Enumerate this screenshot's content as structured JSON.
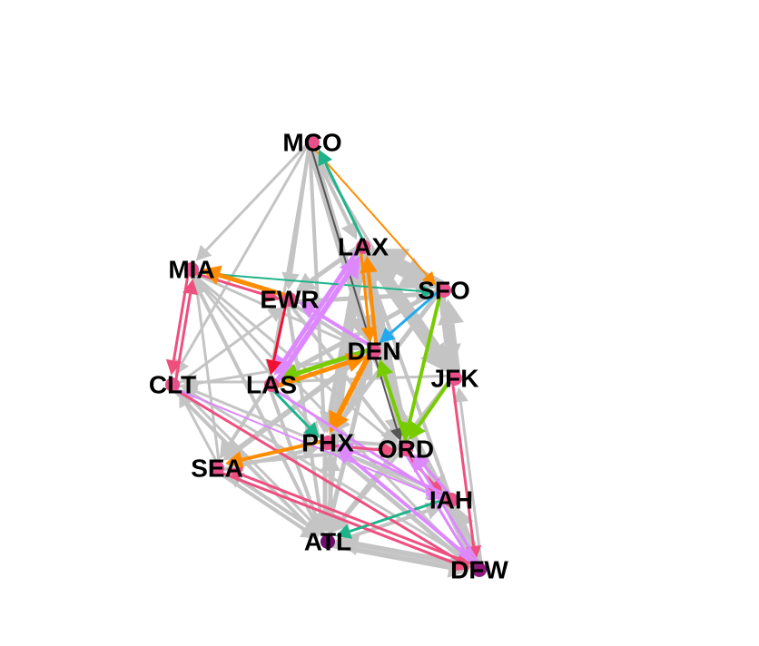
{
  "nodes": [
    {
      "id": "MCO",
      "color": "#e8508a"
    },
    {
      "id": "LAX",
      "color": "#e8508a"
    },
    {
      "id": "MIA",
      "color": "#e8508a"
    },
    {
      "id": "EWR",
      "color": "#e8508a"
    },
    {
      "id": "SFO",
      "color": "#e8508a"
    },
    {
      "id": "DEN",
      "color": "#e8508a"
    },
    {
      "id": "JFK",
      "color": "#e8508a"
    },
    {
      "id": "CLT",
      "color": "#e8508a"
    },
    {
      "id": "LAS",
      "color": "#e8508a"
    },
    {
      "id": "PHX",
      "color": "#e8508a"
    },
    {
      "id": "ORD",
      "color": "#e8508a"
    },
    {
      "id": "SEA",
      "color": "#e8508a"
    },
    {
      "id": "IAH",
      "color": "#e8508a"
    },
    {
      "id": "ATL",
      "color": "#6b0f6b"
    },
    {
      "id": "DFW",
      "color": "#8b1a7a"
    }
  ],
  "colors": {
    "gray": "#c4c4c4",
    "orange": "#ff8c00",
    "violet": "#dd88ff",
    "green": "#77cc00",
    "teal": "#1fb38a",
    "pink": "#ef4f7f",
    "red": "#ee1133",
    "cyan": "#22aaee",
    "dark": "#555555"
  },
  "edges": [
    {
      "from": "MCO",
      "to": "MIA",
      "color": "gray",
      "w": 3
    },
    {
      "from": "MCO",
      "to": "EWR",
      "color": "gray",
      "w": 4
    },
    {
      "from": "MCO",
      "to": "LAX",
      "color": "gray",
      "w": 4
    },
    {
      "from": "MCO",
      "to": "SFO",
      "color": "orange",
      "w": 2
    },
    {
      "from": "MCO",
      "to": "DEN",
      "color": "gray",
      "w": 9
    },
    {
      "from": "MCO",
      "to": "JFK",
      "color": "gray",
      "w": 3
    },
    {
      "from": "MCO",
      "to": "CLT",
      "color": "gray",
      "w": 3
    },
    {
      "from": "MCO",
      "to": "ORD",
      "color": "dark",
      "w": 2
    },
    {
      "from": "MCO",
      "to": "LAS",
      "color": "gray",
      "w": 3
    },
    {
      "from": "MCO",
      "to": "PHX",
      "color": "gray",
      "w": 4
    },
    {
      "from": "LAX",
      "to": "MCO",
      "color": "teal",
      "w": 3
    },
    {
      "from": "LAX",
      "to": "SFO",
      "color": "gray",
      "w": 12
    },
    {
      "from": "LAX",
      "to": "DEN",
      "color": "orange",
      "w": 3
    },
    {
      "from": "LAX",
      "to": "JFK",
      "color": "gray",
      "w": 9
    },
    {
      "from": "LAX",
      "to": "ORD",
      "color": "gray",
      "w": 7
    },
    {
      "from": "LAX",
      "to": "PHX",
      "color": "gray",
      "w": 6
    },
    {
      "from": "LAX",
      "to": "LAS",
      "color": "violet",
      "w": 5
    },
    {
      "from": "LAX",
      "to": "ATL",
      "color": "gray",
      "w": 4
    },
    {
      "from": "LAX",
      "to": "DFW",
      "color": "gray",
      "w": 4
    },
    {
      "from": "LAX",
      "to": "EWR",
      "color": "gray",
      "w": 5
    },
    {
      "from": "SFO",
      "to": "LAX",
      "color": "gray",
      "w": 12
    },
    {
      "from": "SFO",
      "to": "DEN",
      "color": "cyan",
      "w": 3
    },
    {
      "from": "SFO",
      "to": "ORD",
      "color": "green",
      "w": 4
    },
    {
      "from": "SFO",
      "to": "JFK",
      "color": "gray",
      "w": 8
    },
    {
      "from": "SFO",
      "to": "PHX",
      "color": "gray",
      "w": 5
    },
    {
      "from": "SFO",
      "to": "LAS",
      "color": "gray",
      "w": 5
    },
    {
      "from": "MIA",
      "to": "SFO",
      "color": "teal",
      "w": 2
    },
    {
      "from": "MIA",
      "to": "CLT",
      "color": "pink",
      "w": 3
    },
    {
      "from": "MIA",
      "to": "EWR",
      "color": "pink",
      "w": 3
    },
    {
      "from": "MIA",
      "to": "DEN",
      "color": "gray",
      "w": 3
    },
    {
      "from": "MIA",
      "to": "PHX",
      "color": "gray",
      "w": 3
    },
    {
      "from": "MIA",
      "to": "ATL",
      "color": "gray",
      "w": 4
    },
    {
      "from": "MIA",
      "to": "DFW",
      "color": "gray",
      "w": 3
    },
    {
      "from": "MIA",
      "to": "ORD",
      "color": "gray",
      "w": 3
    },
    {
      "from": "CLT",
      "to": "MIA",
      "color": "pink",
      "w": 3
    },
    {
      "from": "CLT",
      "to": "DFW",
      "color": "pink",
      "w": 3
    },
    {
      "from": "CLT",
      "to": "ATL",
      "color": "gray",
      "w": 4
    },
    {
      "from": "CLT",
      "to": "IAH",
      "color": "violet",
      "w": 2
    },
    {
      "from": "CLT",
      "to": "EWR",
      "color": "gray",
      "w": 3
    },
    {
      "from": "CLT",
      "to": "DEN",
      "color": "gray",
      "w": 3
    },
    {
      "from": "EWR",
      "to": "MIA",
      "color": "orange",
      "w": 5
    },
    {
      "from": "EWR",
      "to": "LAS",
      "color": "red",
      "w": 3
    },
    {
      "from": "EWR",
      "to": "DEN",
      "color": "gray",
      "w": 4
    },
    {
      "from": "EWR",
      "to": "SFO",
      "color": "gray",
      "w": 5
    },
    {
      "from": "EWR",
      "to": "ATL",
      "color": "gray",
      "w": 4
    },
    {
      "from": "EWR",
      "to": "ORD",
      "color": "gray",
      "w": 4
    },
    {
      "from": "DEN",
      "to": "LAS",
      "color": "green",
      "w": 5
    },
    {
      "from": "DEN",
      "to": "PHX",
      "color": "orange",
      "w": 6
    },
    {
      "from": "DEN",
      "to": "SEA",
      "color": "gray",
      "w": 6
    },
    {
      "from": "DEN",
      "to": "ATL",
      "color": "gray",
      "w": 5
    },
    {
      "from": "DEN",
      "to": "DFW",
      "color": "gray",
      "w": 5
    },
    {
      "from": "DEN",
      "to": "IAH",
      "color": "gray",
      "w": 4
    },
    {
      "from": "DEN",
      "to": "EWR",
      "color": "violet",
      "w": 4
    },
    {
      "from": "DEN",
      "to": "LAX",
      "color": "orange",
      "w": 4
    },
    {
      "from": "JFK",
      "to": "LAX",
      "color": "gray",
      "w": 9
    },
    {
      "from": "JFK",
      "to": "SFO",
      "color": "gray",
      "w": 8
    },
    {
      "from": "JFK",
      "to": "ORD",
      "color": "green",
      "w": 4
    },
    {
      "from": "JFK",
      "to": "DFW",
      "color": "pink",
      "w": 3
    },
    {
      "from": "JFK",
      "to": "ATL",
      "color": "gray",
      "w": 4
    },
    {
      "from": "JFK",
      "to": "LAS",
      "color": "gray",
      "w": 3
    },
    {
      "from": "LAS",
      "to": "LAX",
      "color": "violet",
      "w": 6
    },
    {
      "from": "LAS",
      "to": "DEN",
      "color": "orange",
      "w": 5
    },
    {
      "from": "LAS",
      "to": "SEA",
      "color": "gray",
      "w": 4
    },
    {
      "from": "LAS",
      "to": "PHX",
      "color": "teal",
      "w": 3
    },
    {
      "from": "LAS",
      "to": "ATL",
      "color": "gray",
      "w": 4
    },
    {
      "from": "LAS",
      "to": "CLT",
      "color": "gray",
      "w": 3
    },
    {
      "from": "LAS",
      "to": "IAH",
      "color": "violet",
      "w": 3
    },
    {
      "from": "PHX",
      "to": "DEN",
      "color": "gray",
      "w": 5
    },
    {
      "from": "PHX",
      "to": "LAX",
      "color": "gray",
      "w": 6
    },
    {
      "from": "PHX",
      "to": "SEA",
      "color": "orange",
      "w": 4
    },
    {
      "from": "PHX",
      "to": "ATL",
      "color": "gray",
      "w": 5
    },
    {
      "from": "PHX",
      "to": "DFW",
      "color": "gray",
      "w": 5
    },
    {
      "from": "PHX",
      "to": "IAH",
      "color": "gray",
      "w": 3
    },
    {
      "from": "PHX",
      "to": "ORD",
      "color": "pink",
      "w": 3
    },
    {
      "from": "ORD",
      "to": "LAX",
      "color": "gray",
      "w": 6
    },
    {
      "from": "ORD",
      "to": "DEN",
      "color": "green",
      "w": 4
    },
    {
      "from": "ORD",
      "to": "IAH",
      "color": "pink",
      "w": 3
    },
    {
      "from": "ORD",
      "to": "DFW",
      "color": "violet",
      "w": 3
    },
    {
      "from": "ORD",
      "to": "ATL",
      "color": "gray",
      "w": 4
    },
    {
      "from": "ORD",
      "to": "SEA",
      "color": "gray",
      "w": 4
    },
    {
      "from": "ORD",
      "to": "PHX",
      "color": "gray",
      "w": 4
    },
    {
      "from": "SEA",
      "to": "CLT",
      "color": "gray",
      "w": 3
    },
    {
      "from": "SEA",
      "to": "MIA",
      "color": "gray",
      "w": 3
    },
    {
      "from": "SEA",
      "to": "ATL",
      "color": "gray",
      "w": 4
    },
    {
      "from": "SEA",
      "to": "DFW",
      "color": "pink",
      "w": 3
    },
    {
      "from": "SEA",
      "to": "PHX",
      "color": "gray",
      "w": 4
    },
    {
      "from": "IAH",
      "to": "ATL",
      "color": "teal",
      "w": 3
    },
    {
      "from": "IAH",
      "to": "DFW",
      "color": "gray",
      "w": 5
    },
    {
      "from": "IAH",
      "to": "ORD",
      "color": "violet",
      "w": 3
    },
    {
      "from": "IAH",
      "to": "PHX",
      "color": "violet",
      "w": 3
    },
    {
      "from": "IAH",
      "to": "CLT",
      "color": "gray",
      "w": 3
    },
    {
      "from": "ATL",
      "to": "DFW",
      "color": "gray",
      "w": 6
    },
    {
      "from": "ATL",
      "to": "PHX",
      "color": "gray",
      "w": 5
    },
    {
      "from": "ATL",
      "to": "CLT",
      "color": "gray",
      "w": 3
    },
    {
      "from": "ATL",
      "to": "SEA",
      "color": "gray",
      "w": 4
    },
    {
      "from": "ATL",
      "to": "IAH",
      "color": "gray",
      "w": 4
    },
    {
      "from": "DFW",
      "to": "ATL",
      "color": "gray",
      "w": 6
    },
    {
      "from": "DFW",
      "to": "IAH",
      "color": "gray",
      "w": 5
    },
    {
      "from": "DFW",
      "to": "PHX",
      "color": "violet",
      "w": 4
    },
    {
      "from": "DFW",
      "to": "JFK",
      "color": "gray",
      "w": 3
    },
    {
      "from": "DFW",
      "to": "ORD",
      "color": "violet",
      "w": 3
    },
    {
      "from": "DFW",
      "to": "CLT",
      "color": "gray",
      "w": 3
    },
    {
      "from": "DFW",
      "to": "SEA",
      "color": "pink",
      "w": 3
    }
  ]
}
